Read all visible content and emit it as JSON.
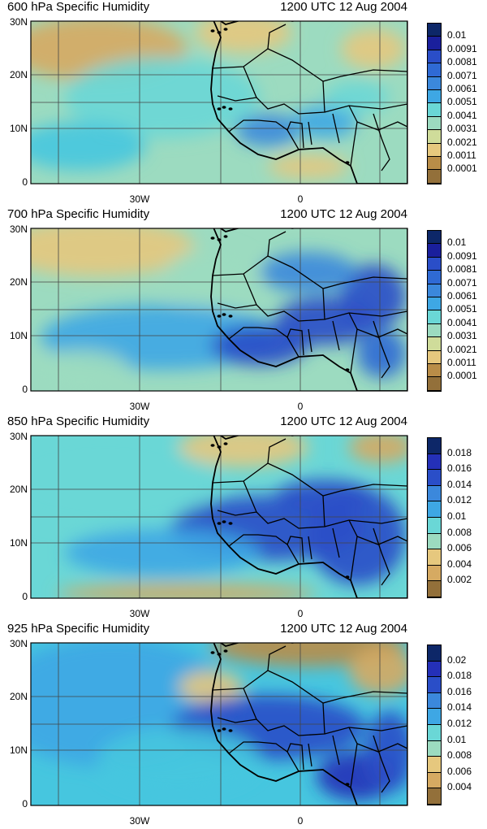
{
  "panels": [
    {
      "title_left": "600 hPa Specific Humidity",
      "title_right": "1200 UTC 12 Aug 2004",
      "legend": [
        "0.01",
        "0.0091",
        "0.0081",
        "0.0071",
        "0.0061",
        "0.0051",
        "0.0041",
        "0.0031",
        "0.0021",
        "0.0011",
        "0.0001"
      ],
      "legend_colors": [
        "#0d2768",
        "#1a1f9c",
        "#2430b8",
        "#2a4ec8",
        "#2f6ad4",
        "#3b88dc",
        "#3ea7e4",
        "#46c6df",
        "#6ad7d6",
        "#9cdbc0",
        "#cfdc9a",
        "#e6c87e",
        "#d6aa62",
        "#b98d48",
        "#93703a"
      ]
    },
    {
      "title_left": "700 hPa Specific Humidity",
      "title_right": "1200 UTC 12 Aug 2004",
      "legend": [
        "0.01",
        "0.0091",
        "0.0081",
        "0.0071",
        "0.0061",
        "0.0051",
        "0.0041",
        "0.0031",
        "0.0021",
        "0.0011",
        "0.0001"
      ],
      "legend_colors": [
        "#0d2768",
        "#1a1f9c",
        "#2430b8",
        "#2a4ec8",
        "#2f6ad4",
        "#3b88dc",
        "#3ea7e4",
        "#46c6df",
        "#6ad7d6",
        "#9cdbc0",
        "#cfdc9a",
        "#e6c87e",
        "#d6aa62",
        "#b98d48",
        "#93703a"
      ]
    },
    {
      "title_left": "850 hPa Specific Humidity",
      "title_right": "1200 UTC 12 Aug 2004",
      "legend": [
        "0.018",
        "0.016",
        "0.014",
        "0.012",
        "0.01",
        "0.008",
        "0.006",
        "0.004",
        "0.002"
      ],
      "legend_colors": [
        "#0d2768",
        "#1a1f9c",
        "#2430b8",
        "#2a4ec8",
        "#2f6ad4",
        "#3b88dc",
        "#3ea7e4",
        "#46c6df",
        "#6ad7d6",
        "#9cdbc0",
        "#cfdc9a",
        "#e6c87e",
        "#d6aa62",
        "#b98d48",
        "#93703a"
      ]
    },
    {
      "title_left": "925 hPa Specific Humidity",
      "title_right": "1200 UTC 12 Aug 2004",
      "legend": [
        "0.02",
        "0.018",
        "0.016",
        "0.014",
        "0.012",
        "0.01",
        "0.008",
        "0.006",
        "0.004"
      ],
      "legend_colors": [
        "#0d2768",
        "#1a1f9c",
        "#2430b8",
        "#2a4ec8",
        "#2f6ad4",
        "#3b88dc",
        "#3ea7e4",
        "#46c6df",
        "#6ad7d6",
        "#9cdbc0",
        "#cfdc9a",
        "#e6c87e",
        "#d6aa62",
        "#b98d48",
        "#93703a"
      ]
    }
  ],
  "axes": {
    "y_ticks": [
      "30N",
      "20N",
      "10N",
      "0"
    ],
    "x_ticks": [
      "30W",
      "0"
    ]
  },
  "colors": {
    "dry": "#b98d48",
    "moist": "#2f6ad4",
    "ocean_mid": "#46c6df",
    "border": "#000000",
    "grid": "#444444"
  }
}
